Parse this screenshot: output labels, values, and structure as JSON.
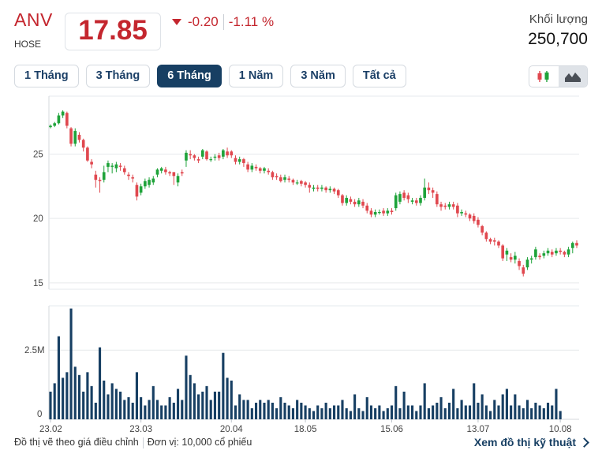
{
  "header": {
    "ticker": "ANV",
    "exchange": "HOSE",
    "price": "17.85",
    "change": "-0.20",
    "change_pct": "-1.11 %",
    "volume_label": "Khối lượng",
    "volume_value": "250,700"
  },
  "tabs": [
    {
      "label": "1 Tháng",
      "active": false
    },
    {
      "label": "3 Tháng",
      "active": false
    },
    {
      "label": "6 Tháng",
      "active": true
    },
    {
      "label": "1 Năm",
      "active": false
    },
    {
      "label": "3 Năm",
      "active": false
    },
    {
      "label": "Tất cả",
      "active": false
    }
  ],
  "chart_type_toggle": {
    "candlestick": "candlestick-icon",
    "area": "area-chart-icon",
    "selected": "area"
  },
  "colors": {
    "up": "#1fa33a",
    "down": "#e0484f",
    "volume": "#173f63",
    "accent": "#c4262e",
    "nav": "#173f63"
  },
  "footer": {
    "note": "Đồ thị vẽ theo giá điều chỉnh",
    "unit": "Đơn vị: 10,000 cổ phiếu",
    "link": "Xem đồ thị kỹ thuật"
  },
  "chart_data": {
    "type": "candlestick",
    "x_tick_labels": [
      "23.02",
      "23.03",
      "20.04",
      "18.05",
      "15.06",
      "13.07",
      "10.08"
    ],
    "x_tick_index": [
      0,
      22,
      44,
      62,
      83,
      104,
      124
    ],
    "price_axis": {
      "ticks": [
        15,
        20,
        25
      ],
      "ylim": [
        14.5,
        29.5
      ]
    },
    "volume_axis": {
      "ticks": [
        "0",
        "2.5M"
      ],
      "tick_values": [
        0,
        2500000
      ],
      "ylim": [
        0,
        4100000
      ]
    },
    "grid": true,
    "candles": [
      [
        27.1,
        27.2,
        27.0,
        27.3
      ],
      [
        27.2,
        27.4,
        27.1,
        27.5
      ],
      [
        27.4,
        28.0,
        27.3,
        28.2
      ],
      [
        28.0,
        28.3,
        27.8,
        28.4
      ],
      [
        28.2,
        27.2,
        27.0,
        28.3
      ],
      [
        27.0,
        25.8,
        25.6,
        27.1
      ],
      [
        25.8,
        26.8,
        25.6,
        27.0
      ],
      [
        26.5,
        26.1,
        25.9,
        26.7
      ],
      [
        26.1,
        25.5,
        25.2,
        26.2
      ],
      [
        25.5,
        24.5,
        24.4,
        25.6
      ],
      [
        24.4,
        24.2,
        23.9,
        24.6
      ],
      [
        23.4,
        23.0,
        22.4,
        23.7
      ],
      [
        23.0,
        22.9,
        22.0,
        23.2
      ],
      [
        23.0,
        23.6,
        22.8,
        24.1
      ],
      [
        24.0,
        24.3,
        23.6,
        24.5
      ],
      [
        24.0,
        24.1,
        23.5,
        24.3
      ],
      [
        23.9,
        24.2,
        23.6,
        24.4
      ],
      [
        24.1,
        24.0,
        23.7,
        24.3
      ],
      [
        23.9,
        23.6,
        23.4,
        24.1
      ],
      [
        23.4,
        23.3,
        23.0,
        23.6
      ],
      [
        23.2,
        23.1,
        22.8,
        23.4
      ],
      [
        22.6,
        21.7,
        21.4,
        22.8
      ],
      [
        22.0,
        22.5,
        21.8,
        22.7
      ],
      [
        22.5,
        22.9,
        22.3,
        23.1
      ],
      [
        22.6,
        23.0,
        22.4,
        23.2
      ],
      [
        22.8,
        23.1,
        22.6,
        23.3
      ],
      [
        23.4,
        23.8,
        23.2,
        23.9
      ],
      [
        23.7,
        23.9,
        23.5,
        24.0
      ],
      [
        23.8,
        23.6,
        23.4,
        24.0
      ],
      [
        23.6,
        23.5,
        23.3,
        23.7
      ],
      [
        23.6,
        23.3,
        22.6,
        23.6
      ],
      [
        22.8,
        23.3,
        22.5,
        23.5
      ],
      [
        23.6,
        23.5,
        23.3,
        23.8
      ],
      [
        24.5,
        25.1,
        24.0,
        25.3
      ],
      [
        25.0,
        24.9,
        24.6,
        25.3
      ],
      [
        24.9,
        24.7,
        24.5,
        25.0
      ],
      [
        24.6,
        24.5,
        24.3,
        24.8
      ],
      [
        24.8,
        25.3,
        24.6,
        25.4
      ],
      [
        25.2,
        24.6,
        24.5,
        25.3
      ],
      [
        24.6,
        24.6,
        24.4,
        24.8
      ],
      [
        24.8,
        24.8,
        24.5,
        25.0
      ],
      [
        24.9,
        24.7,
        24.5,
        25.1
      ],
      [
        24.8,
        25.3,
        24.6,
        25.4
      ],
      [
        25.2,
        24.9,
        24.7,
        25.5
      ],
      [
        25.2,
        24.9,
        24.7,
        25.3
      ],
      [
        24.7,
        24.4,
        24.2,
        24.9
      ],
      [
        24.4,
        24.6,
        24.2,
        24.8
      ],
      [
        24.6,
        24.3,
        24.0,
        24.7
      ],
      [
        24.2,
        23.8,
        23.6,
        24.4
      ],
      [
        23.8,
        24.1,
        23.6,
        24.3
      ],
      [
        24.0,
        23.9,
        23.7,
        24.2
      ],
      [
        23.9,
        23.7,
        23.5,
        24.0
      ],
      [
        23.7,
        23.9,
        23.5,
        24.0
      ],
      [
        23.7,
        23.6,
        23.4,
        23.9
      ],
      [
        23.6,
        23.2,
        23.0,
        23.7
      ],
      [
        23.3,
        23.2,
        23.0,
        23.5
      ],
      [
        23.2,
        22.9,
        22.8,
        23.4
      ],
      [
        23.0,
        23.2,
        22.8,
        23.4
      ],
      [
        23.1,
        23.0,
        22.8,
        23.3
      ],
      [
        23.0,
        22.8,
        22.6,
        23.1
      ],
      [
        22.8,
        22.8,
        22.6,
        23.0
      ],
      [
        22.9,
        22.7,
        22.5,
        23.0
      ],
      [
        22.8,
        22.6,
        22.4,
        22.9
      ],
      [
        22.6,
        22.4,
        22.0,
        22.8
      ],
      [
        22.3,
        22.4,
        22.1,
        22.6
      ],
      [
        22.4,
        22.3,
        22.1,
        22.6
      ],
      [
        22.3,
        22.4,
        22.1,
        22.6
      ],
      [
        22.4,
        22.2,
        22.0,
        22.5
      ],
      [
        22.2,
        22.3,
        22.0,
        22.5
      ],
      [
        22.3,
        22.1,
        21.9,
        22.4
      ],
      [
        22.2,
        21.8,
        21.6,
        22.3
      ],
      [
        21.8,
        21.2,
        21.0,
        21.9
      ],
      [
        21.2,
        21.6,
        21.0,
        21.8
      ],
      [
        21.5,
        21.3,
        21.1,
        21.7
      ],
      [
        21.3,
        21.1,
        20.9,
        21.5
      ],
      [
        21.1,
        21.4,
        20.9,
        21.6
      ],
      [
        21.3,
        21.0,
        20.8,
        21.5
      ],
      [
        21.0,
        20.6,
        20.4,
        21.2
      ],
      [
        20.6,
        20.3,
        20.1,
        20.8
      ],
      [
        20.3,
        20.5,
        20.1,
        20.7
      ],
      [
        20.5,
        20.5,
        20.3,
        20.7
      ],
      [
        20.6,
        20.4,
        20.2,
        20.8
      ],
      [
        20.4,
        20.6,
        20.2,
        20.8
      ],
      [
        20.6,
        20.5,
        20.3,
        20.8
      ],
      [
        20.8,
        21.8,
        20.6,
        22.0
      ],
      [
        21.3,
        21.9,
        21.1,
        22.1
      ],
      [
        22.0,
        21.6,
        21.4,
        22.2
      ],
      [
        21.8,
        21.5,
        21.2,
        22.0
      ],
      [
        21.3,
        21.4,
        21.1,
        21.6
      ],
      [
        21.4,
        21.2,
        21.0,
        21.6
      ],
      [
        21.2,
        21.6,
        21.0,
        21.8
      ],
      [
        21.6,
        22.4,
        21.4,
        23.1
      ],
      [
        22.4,
        22.2,
        21.9,
        22.8
      ],
      [
        22.2,
        22.0,
        21.6,
        22.4
      ],
      [
        21.9,
        21.1,
        20.9,
        22.1
      ],
      [
        21.1,
        20.9,
        20.6,
        21.3
      ],
      [
        21.0,
        20.9,
        20.7,
        21.2
      ],
      [
        20.9,
        21.1,
        20.7,
        21.3
      ],
      [
        21.1,
        20.9,
        20.7,
        21.3
      ],
      [
        21.0,
        20.4,
        20.1,
        21.2
      ],
      [
        20.4,
        20.5,
        20.2,
        20.7
      ],
      [
        20.4,
        20.3,
        20.1,
        20.6
      ],
      [
        20.3,
        20.0,
        19.8,
        20.4
      ],
      [
        20.2,
        19.8,
        19.6,
        20.4
      ],
      [
        19.9,
        19.5,
        19.3,
        20.1
      ],
      [
        19.4,
        18.9,
        18.7,
        19.5
      ],
      [
        18.9,
        18.4,
        18.2,
        19.0
      ],
      [
        18.4,
        18.2,
        18.0,
        18.5
      ],
      [
        18.3,
        18.2,
        17.9,
        18.5
      ],
      [
        18.2,
        17.9,
        17.7,
        18.3
      ],
      [
        17.9,
        16.9,
        16.7,
        18.0
      ],
      [
        17.2,
        17.5,
        16.7,
        17.7
      ],
      [
        17.0,
        16.8,
        16.6,
        17.3
      ],
      [
        16.8,
        17.1,
        16.5,
        17.4
      ],
      [
        16.7,
        16.3,
        16.0,
        16.9
      ],
      [
        16.2,
        15.7,
        15.5,
        16.4
      ],
      [
        16.2,
        16.8,
        16.0,
        17.0
      ],
      [
        16.8,
        16.9,
        16.5,
        17.1
      ],
      [
        17.0,
        17.6,
        16.8,
        17.8
      ],
      [
        17.1,
        17.0,
        16.8,
        17.3
      ],
      [
        17.1,
        17.3,
        16.9,
        17.5
      ],
      [
        17.3,
        17.5,
        17.1,
        17.7
      ],
      [
        17.4,
        17.2,
        17.0,
        17.6
      ],
      [
        17.3,
        17.5,
        17.1,
        17.7
      ],
      [
        17.5,
        17.4,
        17.2,
        17.7
      ],
      [
        17.4,
        17.2,
        17.0,
        17.5
      ],
      [
        17.2,
        17.6,
        17.0,
        17.8
      ],
      [
        17.7,
        18.1,
        17.3,
        18.2
      ],
      [
        18.1,
        17.9,
        17.7,
        18.3
      ]
    ],
    "volume": [
      1000000,
      1300000,
      3000000,
      1500000,
      1700000,
      4000000,
      1900000,
      1600000,
      1000000,
      1700000,
      1200000,
      600000,
      2600000,
      1400000,
      900000,
      1300000,
      1100000,
      1000000,
      700000,
      800000,
      600000,
      1700000,
      800000,
      500000,
      700000,
      1200000,
      700000,
      500000,
      500000,
      800000,
      600000,
      1100000,
      700000,
      2300000,
      1600000,
      1300000,
      900000,
      1000000,
      1200000,
      700000,
      1000000,
      1000000,
      2400000,
      1500000,
      1400000,
      500000,
      900000,
      700000,
      700000,
      400000,
      600000,
      700000,
      600000,
      700000,
      600000,
      400000,
      800000,
      600000,
      500000,
      400000,
      700000,
      600000,
      500000,
      400000,
      300000,
      500000,
      400000,
      600000,
      400000,
      500000,
      500000,
      700000,
      400000,
      300000,
      900000,
      400000,
      300000,
      800000,
      500000,
      400000,
      500000,
      300000,
      400000,
      500000,
      1200000,
      400000,
      1000000,
      500000,
      500000,
      300000,
      500000,
      1300000,
      400000,
      500000,
      600000,
      800000,
      400000,
      600000,
      1100000,
      400000,
      700000,
      500000,
      500000,
      1300000,
      600000,
      900000,
      500000,
      300000,
      700000,
      500000,
      900000,
      1100000,
      500000,
      900000,
      500000,
      400000,
      700000,
      400000,
      600000,
      500000,
      400000,
      600000,
      500000,
      1100000,
      300000
    ]
  }
}
